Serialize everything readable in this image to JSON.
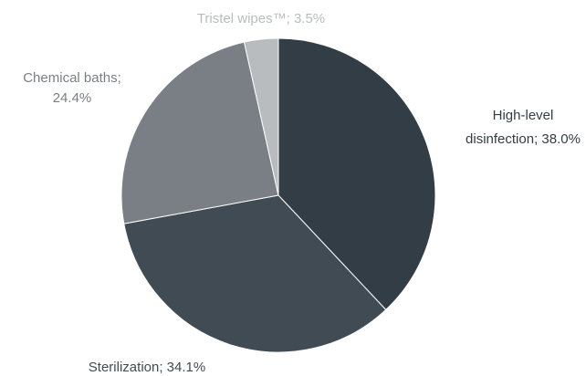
{
  "chart_data": {
    "type": "pie",
    "start_angle_deg": 0,
    "direction": "clockwise",
    "slices": [
      {
        "label": "High-level disinfection",
        "value": 38.0,
        "text_lines": [
          "High-level",
          "disinfection; 38.0%"
        ],
        "color": "#333d45",
        "label_color": "#333d45"
      },
      {
        "label": "Sterilization",
        "value": 34.1,
        "text_lines": [
          "Sterilization; 34.1%"
        ],
        "color": "#414b54",
        "label_color": "#414b54"
      },
      {
        "label": "Chemical baths",
        "value": 24.4,
        "text_lines": [
          "Chemical baths;",
          "24.4%"
        ],
        "color": "#7a7f85",
        "label_color": "#7a7f85"
      },
      {
        "label": "Tristel wipes™",
        "value": 3.5,
        "text_lines": [
          "Tristel wipes™; 3.5%"
        ],
        "color": "#b9bcbe",
        "label_color": "#b9bcbe"
      }
    ]
  }
}
